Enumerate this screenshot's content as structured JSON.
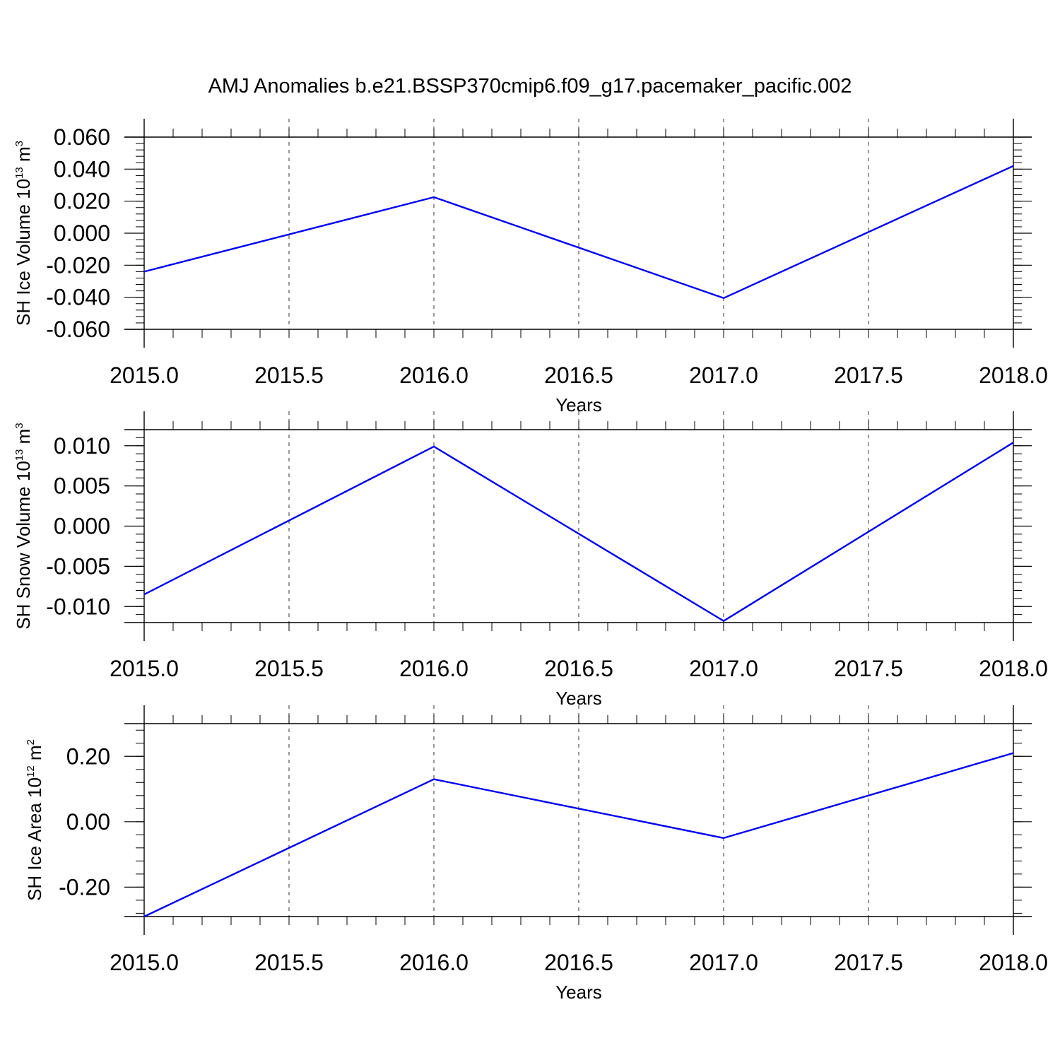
{
  "title": "AMJ Anomalies b.e21.BSSP370cmip6.f09_g17.pacemaker_pacific.002",
  "colors": {
    "line": "#0000ee",
    "axis": "#000000",
    "grid": "#555555"
  },
  "chart_data": [
    {
      "type": "line",
      "x": [
        2015.0,
        2016.0,
        2017.0,
        2018.0
      ],
      "series": [
        {
          "values": [
            -0.024,
            0.0225,
            -0.0405,
            0.042
          ]
        }
      ],
      "xlim": [
        2015.0,
        2018.0
      ],
      "ylim": [
        -0.06,
        0.06
      ],
      "xticks": [
        "2015.0",
        "2015.5",
        "2016.0",
        "2016.5",
        "2017.0",
        "2017.5",
        "2018.0"
      ],
      "yticks": [
        "0.060",
        "0.040",
        "0.020",
        "0.000",
        "-0.020",
        "-0.040",
        "-0.060"
      ],
      "ytick_values": [
        0.06,
        0.04,
        0.02,
        0.0,
        -0.02,
        -0.04,
        -0.06
      ],
      "xlabel": "Years",
      "ylabel": {
        "text": "SH Ice Volume 10",
        "exponent": "13",
        "unit": " m",
        "unit_exponent": "3"
      },
      "grid": "vertical dashed"
    },
    {
      "type": "line",
      "x": [
        2015.0,
        2016.0,
        2017.0,
        2018.0
      ],
      "series": [
        {
          "values": [
            -0.0085,
            0.0099,
            -0.0118,
            0.0104
          ]
        }
      ],
      "xlim": [
        2015.0,
        2018.0
      ],
      "ylim": [
        -0.012,
        0.012
      ],
      "xticks": [
        "2015.0",
        "2015.5",
        "2016.0",
        "2016.5",
        "2017.0",
        "2017.5",
        "2018.0"
      ],
      "yticks": [
        "0.010",
        "0.005",
        "0.000",
        "-0.005",
        "-0.010"
      ],
      "ytick_values": [
        0.01,
        0.005,
        0.0,
        -0.005,
        -0.01
      ],
      "xlabel": "Years",
      "ylabel": {
        "text": "SH Snow Volume 10",
        "exponent": "13",
        "unit": " m",
        "unit_exponent": "3"
      },
      "grid": "vertical dashed"
    },
    {
      "type": "line",
      "x": [
        2015.0,
        2016.0,
        2017.0,
        2018.0
      ],
      "series": [
        {
          "values": [
            -0.29,
            0.13,
            -0.05,
            0.21
          ]
        }
      ],
      "xlim": [
        2015.0,
        2018.0
      ],
      "ylim": [
        -0.29,
        0.3
      ],
      "xticks": [
        "2015.0",
        "2015.5",
        "2016.0",
        "2016.5",
        "2017.0",
        "2017.5",
        "2018.0"
      ],
      "yticks": [
        "0.20",
        "0.00",
        "-0.20"
      ],
      "ytick_values": [
        0.2,
        0.0,
        -0.2
      ],
      "xlabel": "Years",
      "ylabel": {
        "text": "SH Ice Area 10",
        "exponent": "12",
        "unit": " m",
        "unit_exponent": "2"
      },
      "grid": "vertical dashed"
    }
  ]
}
